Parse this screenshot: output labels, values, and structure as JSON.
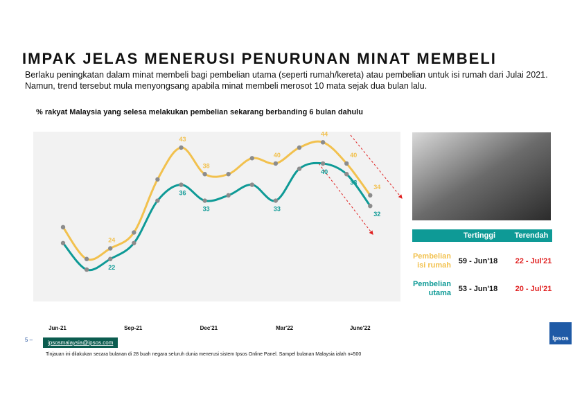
{
  "slide": {
    "title": "IMPAK JELAS MENERUSI PENURUNAN MINAT MEMBELI",
    "subtitle": [
      "Berlaku peningkatan dalam minat membeli bagi pembelian utama (seperti rumah/kereta) atau pembelian untuk isi rumah dari Julai 2021.",
      "Namun, trend tersebut mula menyongsang apabila minat membeli merosot 10 mata sejak dua bulan lalu."
    ],
    "page_number": "5 –",
    "email": "ipsosmalaysia@ipsos.com",
    "footnote": "Tinjauan ini dilakukan secara bulanan di 28 buah negara seluruh dunia menerusi sistem Ipsos Online Panel. Sampel bulanan Malaysia ialah n=500",
    "logo": "Ipsos"
  },
  "table": {
    "header": [
      "Tertinggi",
      "Terendah"
    ],
    "rows": [
      [
        "Pembelian isi rumah",
        "59 - Jun'18",
        "22 - Jul'21"
      ],
      [
        "Pembelian utama",
        "53 - Jun'18",
        "20 - Jul'21"
      ]
    ]
  },
  "chart_data": {
    "type": "line",
    "title": "% rakyat Malaysia yang selesa melakukan pembelian sekarang berbanding 6 bulan dahulu",
    "categories": [
      "Jun-21",
      null,
      null,
      "Sep-21",
      null,
      null,
      "Dec'21",
      null,
      null,
      "Mar'22",
      null,
      null,
      "June'22",
      null
    ],
    "series": [
      {
        "name": "Pembelian isi rumah",
        "color": "#f2c14e",
        "values": [
          28,
          22,
          24,
          27,
          37,
          43,
          38,
          38,
          41,
          40,
          43,
          44,
          40,
          34
        ],
        "value_labels": [
          null,
          null,
          "24",
          null,
          null,
          "43",
          "38",
          null,
          null,
          "40",
          null,
          "44",
          "40",
          "34"
        ]
      },
      {
        "name": "Pembelian utama",
        "color": "#0e9a96",
        "values": [
          25,
          20,
          22,
          25,
          33,
          36,
          33,
          34,
          36,
          33,
          39,
          40,
          38,
          32
        ],
        "value_labels": [
          null,
          null,
          "22",
          null,
          null,
          "36",
          "33",
          null,
          null,
          "33",
          null,
          "40",
          "38",
          "32"
        ]
      }
    ],
    "marker_color": "#8c8c8c",
    "ylim": [
      14,
      46
    ]
  }
}
